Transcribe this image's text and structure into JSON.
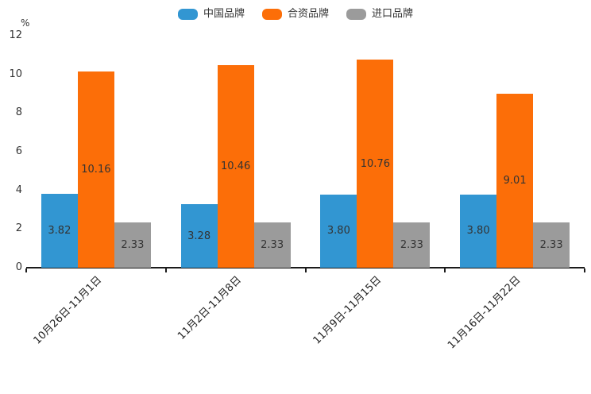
{
  "chart_data": {
    "type": "bar",
    "title": "",
    "ylabel": "%",
    "xlabel": "",
    "ylim": [
      0,
      12
    ],
    "yticks": [
      0,
      2,
      4,
      6,
      8,
      10,
      12
    ],
    "grid": false,
    "legend_position": "top-center",
    "categories": [
      "10月26日-11月1日",
      "11月2日-11月8日",
      "11月9日-11月15日",
      "11月16日-11月22日"
    ],
    "series": [
      {
        "name": "中国品牌",
        "color": "#3296D2",
        "values": [
          3.82,
          3.28,
          3.8,
          3.8
        ],
        "labels": [
          "3.82",
          "3.28",
          "3.80",
          "3.80"
        ]
      },
      {
        "name": "合资品牌",
        "color": "#FC6E08",
        "values": [
          10.16,
          10.46,
          10.76,
          9.01
        ],
        "labels": [
          "10.16",
          "10.46",
          "10.76",
          "9.01"
        ]
      },
      {
        "name": "进口品牌",
        "color": "#9B9B9B",
        "values": [
          2.33,
          2.33,
          2.33,
          2.33
        ],
        "labels": [
          "2.33",
          "2.33",
          "2.33",
          "2.33"
        ]
      }
    ],
    "value_label_position": "inside-center",
    "axis_color": "#1b1b1b",
    "label_text_color": "#333333"
  }
}
